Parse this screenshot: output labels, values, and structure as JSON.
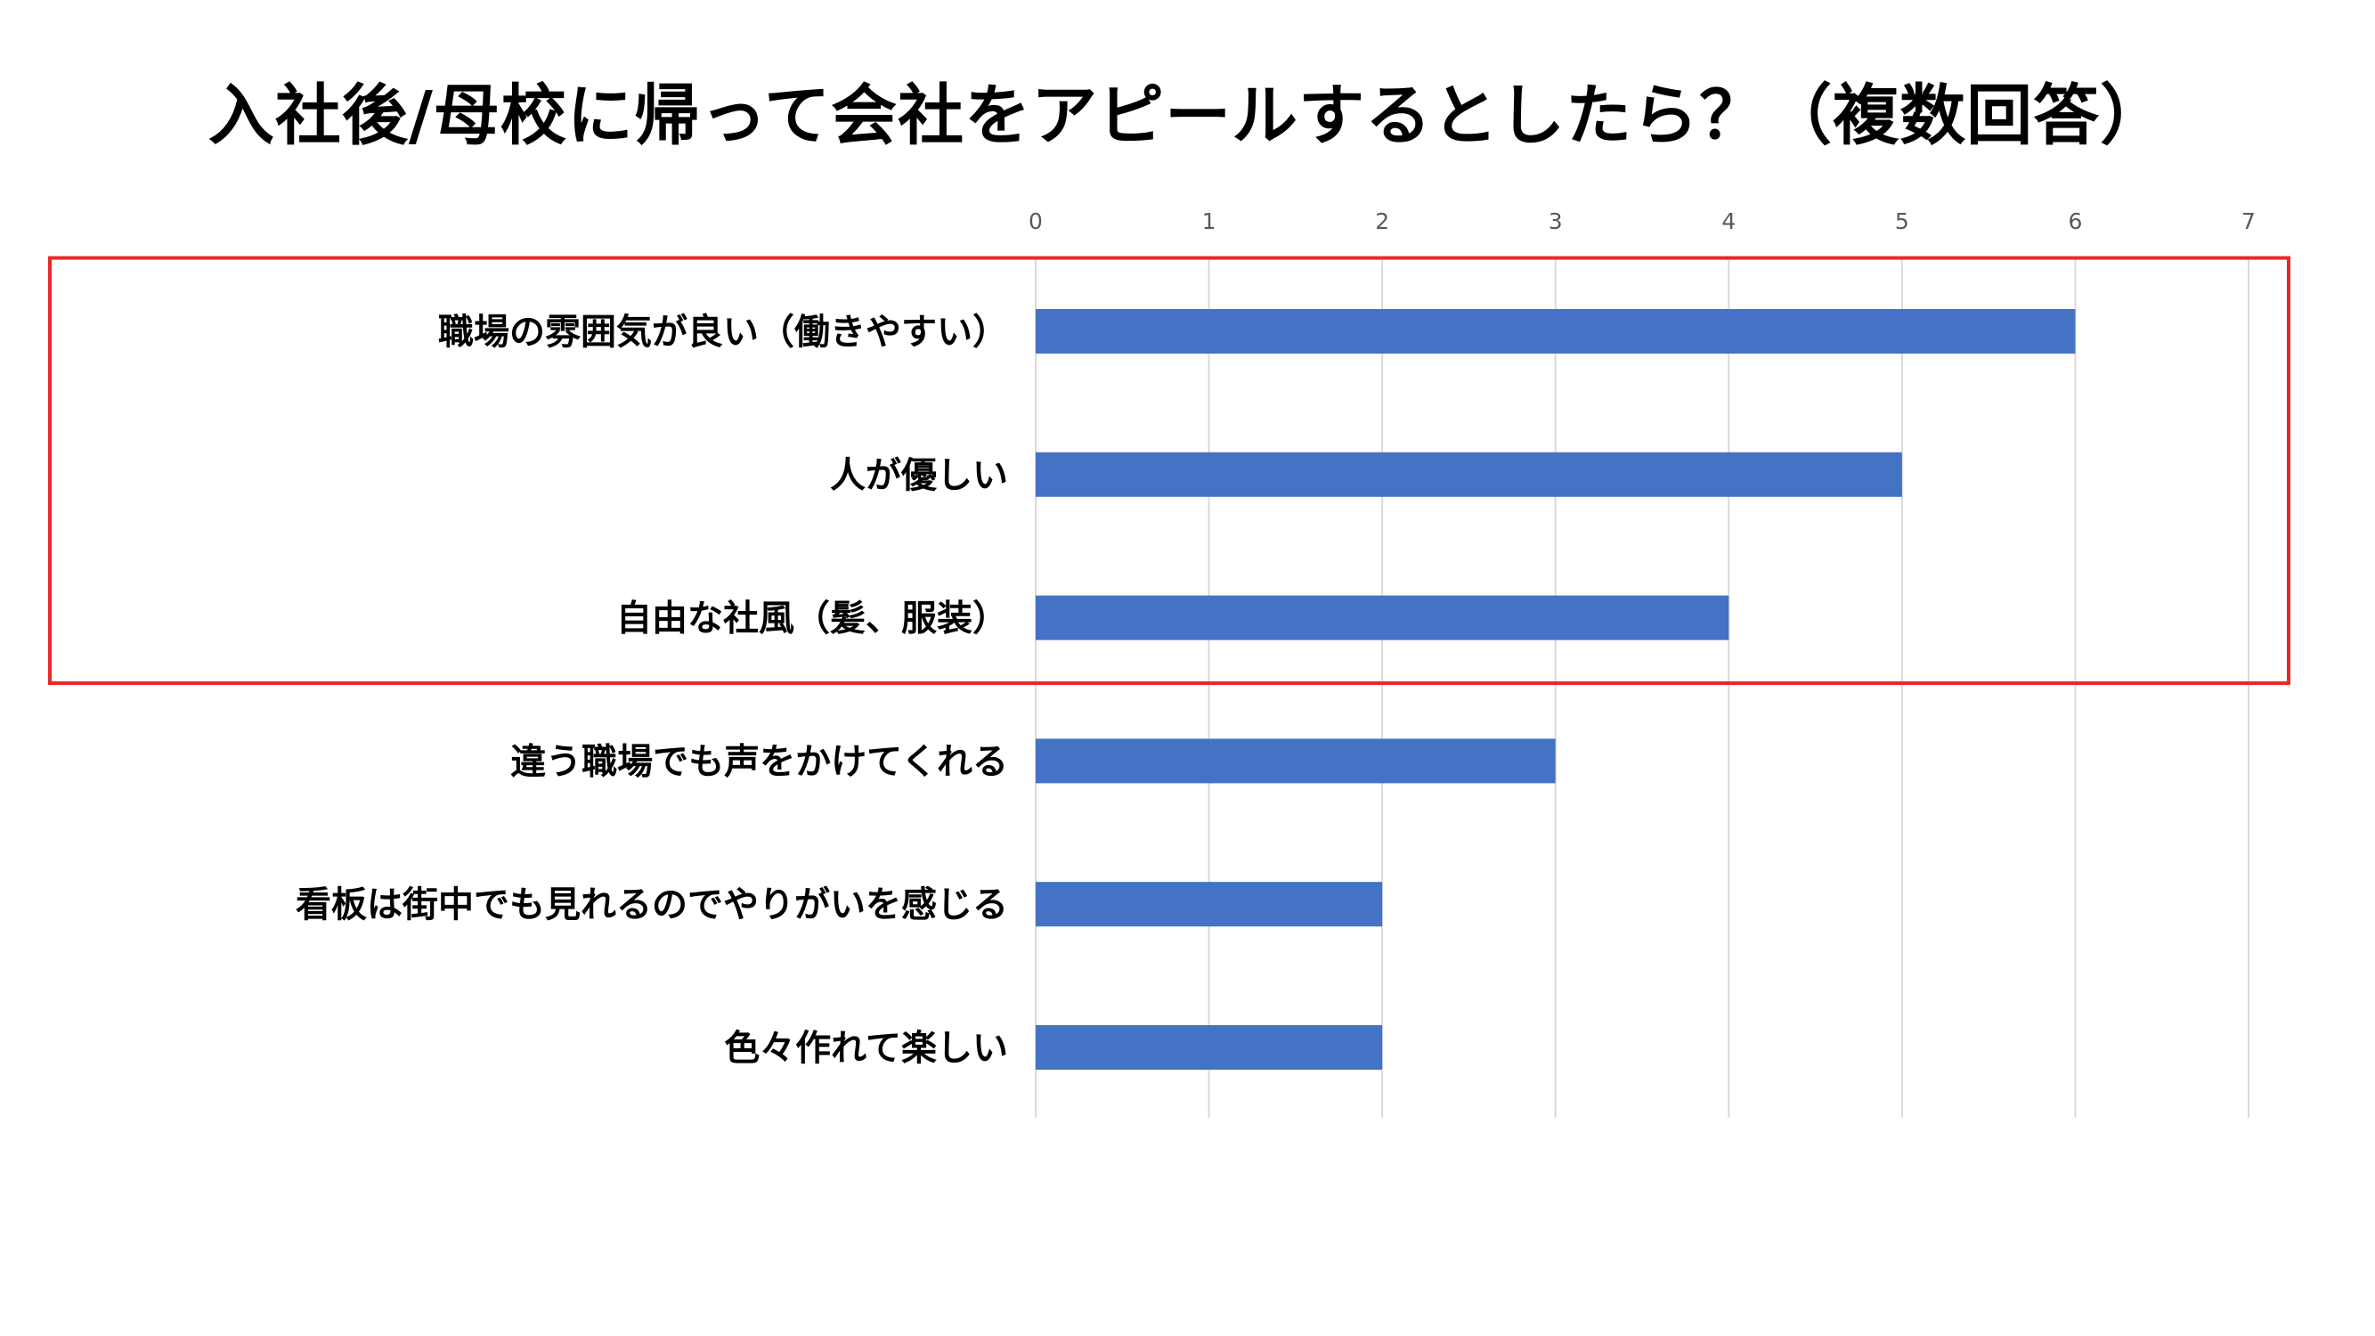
{
  "chart_data": {
    "type": "bar",
    "orientation": "horizontal",
    "title": "入社後/母校に帰って会社をアピールするとしたら？（複数回答）",
    "categories": [
      "職場の雰囲気が良い（働きやすい）",
      "人が優しい",
      "自由な社風（髪、服装）",
      "違う職場でも声をかけてくれる",
      "看板は街中でも見れるのでやりがいを感じる",
      "色々作れて楽しい"
    ],
    "values": [
      6,
      5,
      4,
      3,
      2,
      2
    ],
    "xlim": [
      0,
      7
    ],
    "ticks": [
      "0",
      "1",
      "2",
      "3",
      "4",
      "5",
      "6",
      "7"
    ],
    "axis_position": "top",
    "grid": true,
    "bar_color": "#4472C4",
    "highlight": {
      "categories_highlighted": 3,
      "color": "#E8282B"
    }
  }
}
